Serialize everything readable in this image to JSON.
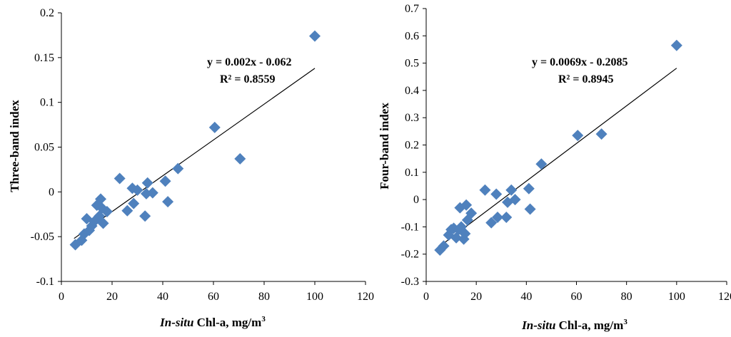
{
  "colors": {
    "marker": "#4F81BD",
    "axis": "#000000"
  },
  "chart_data": [
    {
      "type": "scatter",
      "title": "",
      "xlabel_italic": "In-situ",
      "xlabel_rest": " Chl-a, mg/m",
      "xlabel_sup": "3",
      "ylabel": "Three-band index",
      "xlim": [
        0,
        120
      ],
      "ylim": [
        -0.1,
        0.2
      ],
      "x_ticks": [
        0,
        20,
        40,
        60,
        80,
        100,
        120
      ],
      "x_tick_labels": [
        "0",
        "20",
        "40",
        "60",
        "80",
        "100",
        "120"
      ],
      "y_ticks": [
        -0.1,
        -0.05,
        0,
        0.05,
        0.1,
        0.15,
        0.2
      ],
      "y_tick_labels": [
        "-0.1",
        "-0.05",
        "0",
        "0.05",
        "0.1",
        "0.15",
        "0.2"
      ],
      "equation": "y = 0.002x - 0.062",
      "r2_label": "R² = 0.8559",
      "trendline": {
        "slope": 0.002,
        "intercept": -0.062,
        "x_range": [
          5,
          100
        ]
      },
      "points": [
        [
          5.5,
          -0.059
        ],
        [
          8,
          -0.054
        ],
        [
          9,
          -0.047
        ],
        [
          10,
          -0.03
        ],
        [
          11,
          -0.043
        ],
        [
          12,
          -0.038
        ],
        [
          13,
          -0.033
        ],
        [
          14,
          -0.015
        ],
        [
          15,
          -0.027
        ],
        [
          15.5,
          -0.008
        ],
        [
          16,
          -0.018
        ],
        [
          16.5,
          -0.035
        ],
        [
          18,
          -0.022
        ],
        [
          23,
          0.015
        ],
        [
          26,
          -0.021
        ],
        [
          28,
          0.004
        ],
        [
          28.5,
          -0.013
        ],
        [
          30,
          0.002
        ],
        [
          33,
          -0.027
        ],
        [
          33.5,
          -0.002
        ],
        [
          34,
          0.01
        ],
        [
          36,
          -0.001
        ],
        [
          41,
          0.012
        ],
        [
          42,
          -0.011
        ],
        [
          46,
          0.026
        ],
        [
          60.5,
          0.072
        ],
        [
          70.5,
          0.037
        ],
        [
          100,
          0.174
        ]
      ]
    },
    {
      "type": "scatter",
      "title": "",
      "xlabel_italic": "In-situ",
      "xlabel_rest": " Chl-a, mg/m",
      "xlabel_sup": "3",
      "ylabel": "Four-band index",
      "xlim": [
        0,
        120
      ],
      "ylim": [
        -0.3,
        0.7
      ],
      "x_ticks": [
        0,
        20,
        40,
        60,
        80,
        100,
        120
      ],
      "x_tick_labels": [
        "0",
        "20",
        "40",
        "60",
        "80",
        "100",
        "120"
      ],
      "y_ticks": [
        -0.3,
        -0.2,
        -0.1,
        0,
        0.1,
        0.2,
        0.3,
        0.4,
        0.5,
        0.6,
        0.7
      ],
      "y_tick_labels": [
        "-0.3",
        "-0.2",
        "-0.1",
        "0",
        "0.1",
        "0.2",
        "0.3",
        "0.4",
        "0.5",
        "0.6",
        "0.7"
      ],
      "equation": "y = 0.0069x - 0.2085",
      "r2_label": "R² = 0.8945",
      "trendline": {
        "slope": 0.0069,
        "intercept": -0.2085,
        "x_range": [
          5,
          100
        ]
      },
      "points": [
        [
          5.5,
          -0.185
        ],
        [
          7,
          -0.17
        ],
        [
          9,
          -0.13
        ],
        [
          10,
          -0.11
        ],
        [
          11,
          -0.105
        ],
        [
          12,
          -0.14
        ],
        [
          13,
          -0.11
        ],
        [
          13.5,
          -0.03
        ],
        [
          14,
          -0.1
        ],
        [
          15,
          -0.145
        ],
        [
          15.5,
          -0.125
        ],
        [
          16,
          -0.02
        ],
        [
          16.5,
          -0.075
        ],
        [
          18,
          -0.05
        ],
        [
          23.5,
          0.035
        ],
        [
          26,
          -0.085
        ],
        [
          28,
          0.02
        ],
        [
          28.5,
          -0.065
        ],
        [
          32,
          -0.065
        ],
        [
          32.5,
          -0.01
        ],
        [
          34,
          0.035
        ],
        [
          35.5,
          0.0
        ],
        [
          41,
          0.04
        ],
        [
          41.5,
          -0.035
        ],
        [
          46,
          0.13
        ],
        [
          60.5,
          0.235
        ],
        [
          70,
          0.24
        ],
        [
          100,
          0.565
        ]
      ]
    }
  ]
}
